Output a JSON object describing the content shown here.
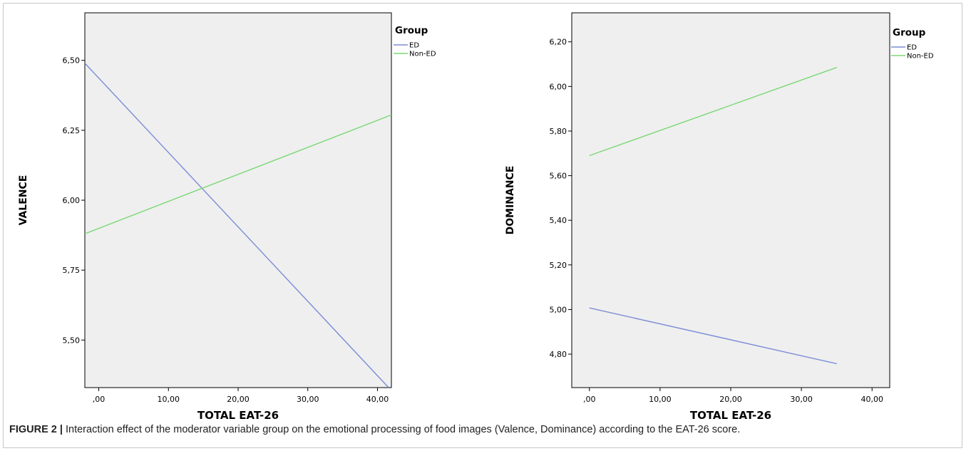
{
  "chart_data": [
    {
      "type": "line",
      "title": "",
      "xlabel": "TOTAL EAT-26",
      "ylabel": "VALENCE",
      "xlim": [
        -2,
        42
      ],
      "ylim": [
        5.33,
        6.67
      ],
      "x_ticks": [
        0,
        10,
        20,
        30,
        40
      ],
      "x_tick_labels": [
        ",00",
        "10,00",
        "20,00",
        "30,00",
        "40,00"
      ],
      "y_ticks": [
        5.5,
        5.75,
        6.0,
        6.25,
        6.5
      ],
      "y_tick_labels": [
        "5,50",
        "5,75",
        "6,00",
        "6,25",
        "6,50"
      ],
      "legend_title": "Group",
      "legend_position": "top-right outside",
      "grid": false,
      "series": [
        {
          "name": "ED",
          "color": "#7b8cd6",
          "x": [
            -2,
            41.6
          ],
          "y": [
            6.49,
            5.33
          ]
        },
        {
          "name": "Non-ED",
          "color": "#79d874",
          "x": [
            -2,
            42
          ],
          "y": [
            5.88,
            6.305
          ]
        }
      ]
    },
    {
      "type": "line",
      "title": "",
      "xlabel": "TOTAL EAT-26",
      "ylabel": "DOMINANCE",
      "xlim": [
        -2.5,
        42.5
      ],
      "ylim": [
        4.65,
        6.33
      ],
      "x_ticks": [
        0,
        10,
        20,
        30,
        40
      ],
      "x_tick_labels": [
        ",00",
        "10,00",
        "20,00",
        "30,00",
        "40,00"
      ],
      "y_ticks": [
        4.8,
        5.0,
        5.2,
        5.4,
        5.6,
        5.8,
        6.0,
        6.2
      ],
      "y_tick_labels": [
        "4,80",
        "5,00",
        "5,20",
        "5,40",
        "5,60",
        "5,80",
        "6,00",
        "6,20"
      ],
      "legend_title": "Group",
      "legend_position": "top-right outside",
      "grid": false,
      "series": [
        {
          "name": "ED",
          "color": "#7b8cd6",
          "x": [
            0,
            35
          ],
          "y": [
            5.007,
            4.757
          ]
        },
        {
          "name": "Non-ED",
          "color": "#79d874",
          "x": [
            0,
            35
          ],
          "y": [
            5.69,
            6.085
          ]
        }
      ]
    }
  ],
  "caption": {
    "label": "FIGURE 2 |",
    "text": " Interaction effect of the moderator variable group on the emotional processing of food images (Valence, Dominance) according to the EAT-26 score."
  },
  "colors": {
    "plot_background": "#efefef",
    "axis": "#000000"
  }
}
